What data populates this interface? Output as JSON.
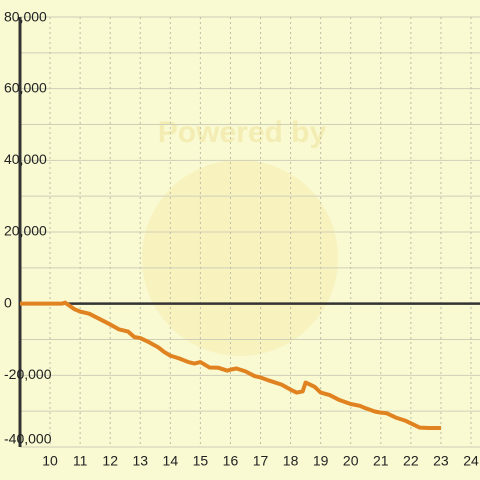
{
  "chart_data": {
    "type": "line",
    "watermark": "Powered by",
    "x": [
      9,
      10.4,
      10.5,
      10.8,
      11,
      11.3,
      11.7,
      12,
      12.3,
      12.6,
      12.8,
      13,
      13.3,
      13.6,
      13.8,
      14,
      14.3,
      14.6,
      14.8,
      15,
      15.3,
      15.6,
      15.9,
      16,
      16.2,
      16.5,
      16.8,
      17,
      17.3,
      17.7,
      18,
      18.2,
      18.4,
      18.5,
      18.8,
      19,
      19.3,
      19.6,
      20,
      20.3,
      20.5,
      20.8,
      21,
      21.2,
      21.5,
      21.8,
      22,
      22.3,
      22.6,
      23
    ],
    "series": [
      {
        "color": "#e0821f",
        "values": [
          0,
          0,
          300,
          -1500,
          -2200,
          -2800,
          -4500,
          -5800,
          -7200,
          -7800,
          -9300,
          -9600,
          -10800,
          -12200,
          -13500,
          -14500,
          -15300,
          -16300,
          -16700,
          -16300,
          -17800,
          -17900,
          -18700,
          -18400,
          -18100,
          -18900,
          -20200,
          -20600,
          -21500,
          -22600,
          -24000,
          -24800,
          -24500,
          -22000,
          -23200,
          -24800,
          -25500,
          -26800,
          -28000,
          -28500,
          -29200,
          -30100,
          -30400,
          -30600,
          -31800,
          -32600,
          -33400,
          -34600,
          -34700,
          -34700
        ]
      }
    ],
    "xlim": [
      9,
      24.3
    ],
    "xticks": [
      10,
      11,
      12,
      13,
      14,
      15,
      16,
      17,
      18,
      19,
      20,
      21,
      22,
      23,
      24
    ],
    "ylim": [
      -40000,
      80000
    ],
    "yticks": [
      {
        "value": -40000,
        "label": "-40,000"
      },
      {
        "value": -20000,
        "label": "-20,000"
      },
      0,
      {
        "value": 20000,
        "label": "20,000"
      },
      {
        "value": 40000,
        "label": "40,000"
      },
      {
        "value": 60000,
        "label": "60,000"
      },
      {
        "value": 80000,
        "label": "80,000"
      }
    ],
    "minor_yticks": [
      -30000,
      -10000,
      10000,
      30000,
      50000,
      70000
    ],
    "grid": true
  }
}
